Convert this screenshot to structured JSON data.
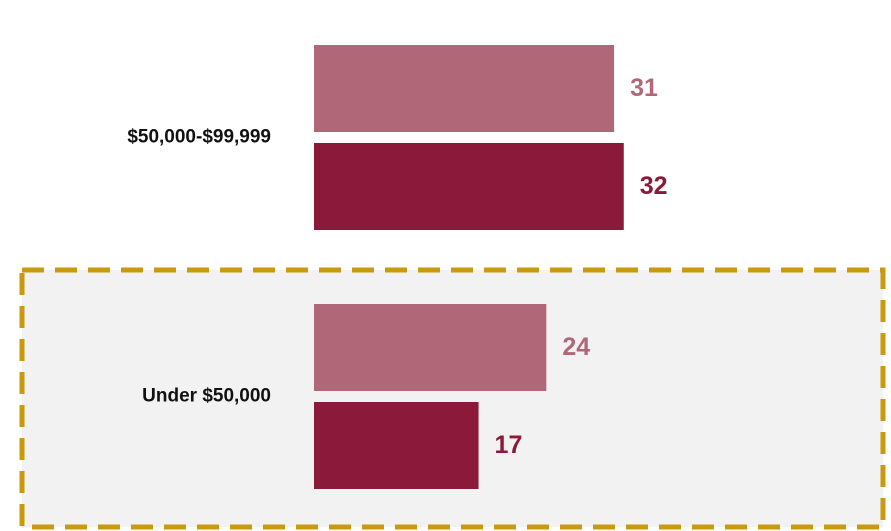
{
  "chart_data": {
    "type": "barh",
    "categories": [
      "$50,000-$99,999",
      "Under $50,000"
    ],
    "series": [
      {
        "color": "#b06778",
        "values": [
          31,
          24
        ]
      },
      {
        "color": "#8b1a3a",
        "values": [
          32,
          17
        ]
      }
    ]
  }
}
